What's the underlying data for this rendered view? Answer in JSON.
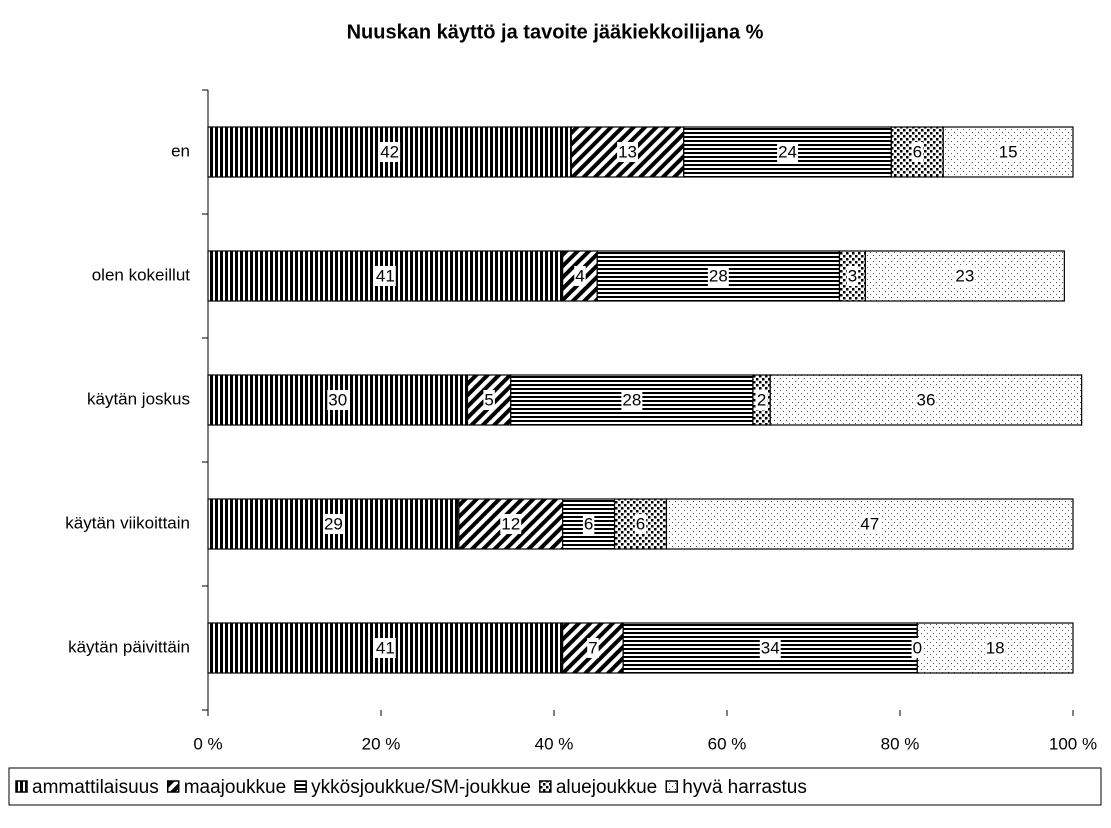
{
  "chart_data": {
    "type": "stacked-barh",
    "title": "Nuuskan käyttö ja tavoite jääkiekkoilijana %",
    "categories": [
      "en",
      "olen kokeillut",
      "käytän joskus",
      "käytän viikoittain",
      "käytän päivittäin"
    ],
    "series": [
      {
        "name": "ammattilaisuus",
        "pattern": "vertical",
        "values": [
          42,
          41,
          30,
          29,
          41
        ]
      },
      {
        "name": "maajoukkue",
        "pattern": "diagonal",
        "values": [
          13,
          4,
          5,
          12,
          7
        ]
      },
      {
        "name": "ykkösjoukkue/SM-joukkue",
        "pattern": "horizontal",
        "values": [
          24,
          28,
          28,
          6,
          34
        ]
      },
      {
        "name": "aluejoukkue",
        "pattern": "dense-dots",
        "values": [
          6,
          3,
          2,
          6,
          0
        ]
      },
      {
        "name": "hyvä harrastus",
        "pattern": "sparse-dots",
        "values": [
          15,
          23,
          36,
          47,
          18
        ]
      }
    ],
    "xlim": [
      0,
      100
    ],
    "xticks": [
      {
        "value": 0,
        "label": "0 %"
      },
      {
        "value": 20,
        "label": "20 %"
      },
      {
        "value": 40,
        "label": "40 %"
      },
      {
        "value": 60,
        "label": "60 %"
      },
      {
        "value": 80,
        "label": "80 %"
      },
      {
        "value": 100,
        "label": "100 %"
      }
    ],
    "legend": "bottom"
  }
}
